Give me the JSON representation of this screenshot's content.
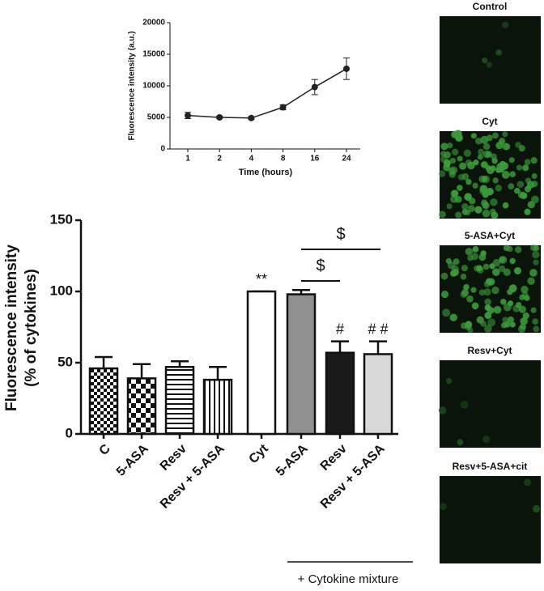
{
  "chart_data": [
    {
      "type": "line",
      "x_label": "Time (hours)",
      "y_label": "Fluorescence intensity (a.u.)",
      "categories": [
        "1",
        "2",
        "4",
        "8",
        "16",
        "24"
      ],
      "values": [
        5300,
        5000,
        4900,
        6600,
        9800,
        12700
      ],
      "errors": [
        500,
        200,
        200,
        400,
        1200,
        1700
      ],
      "color": "#222222",
      "ylim": [
        0,
        20000
      ],
      "yticks": [
        0,
        5000,
        10000,
        15000,
        20000
      ]
    },
    {
      "type": "bar",
      "y_label": [
        "Fluorescence intensity",
        "(% of cytokines)"
      ],
      "categories": [
        "C",
        "5-ASA",
        "Resv",
        "Resv + 5-ASA",
        "Cyt",
        "5-ASA",
        "Resv",
        "Resv + 5-ASA"
      ],
      "values": [
        46,
        39,
        47,
        38,
        100,
        98,
        57,
        56
      ],
      "errors": [
        8,
        10,
        4,
        9,
        0,
        3,
        8,
        9
      ],
      "value_annotations": [
        null,
        null,
        null,
        null,
        "**",
        null,
        "#",
        "# #"
      ],
      "brackets": [
        "$",
        "$"
      ],
      "group_label": "+ Cytokine mixture",
      "ylim": [
        0,
        150
      ],
      "yticks": [
        0,
        50,
        100,
        150
      ]
    }
  ],
  "images": [
    "Control",
    "Cyt",
    "5-ASA+Cyt",
    "Resv+Cyt",
    "Resv+5-ASA+cit"
  ]
}
